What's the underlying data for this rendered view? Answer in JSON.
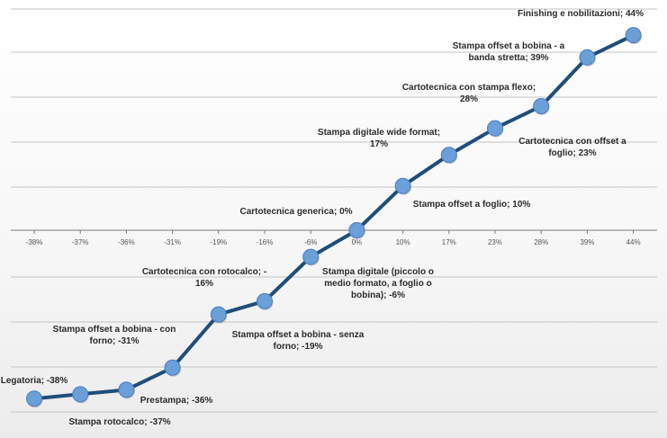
{
  "chart_data": {
    "type": "line",
    "title": "",
    "xlabel": "",
    "ylabel": "",
    "grid": true,
    "legend": "none",
    "line_color": "#1f4e79",
    "marker_color": "#6a9fd8",
    "grid_color": "#c4c4c4",
    "axis_color": "#7a7a7a",
    "points": [
      {
        "name": "Legatoria",
        "value": -38,
        "tick": "-38%",
        "label_lines": [
          "Legatoria; -38%"
        ]
      },
      {
        "name": "Stampa rotocalco",
        "value": -37,
        "tick": "-37%",
        "label_lines": [
          "Stampa rotocalco; -37%"
        ]
      },
      {
        "name": "Prestampa",
        "value": -36,
        "tick": "-36%",
        "label_lines": [
          "Prestampa; -36%"
        ]
      },
      {
        "name": "Stampa offset a bobina - con forno",
        "value": -31,
        "tick": "-31%",
        "label_lines": [
          "Stampa offset a bobina - con",
          "forno; -31%"
        ]
      },
      {
        "name": "Stampa offset a bobina - senza forno",
        "value": -19,
        "tick": "-19%",
        "label_lines": [
          "Stampa offset a bobina - senza",
          "forno; -19%"
        ]
      },
      {
        "name": "Cartotecnica con rotocalco",
        "value": -16,
        "tick": "-16%",
        "label_lines": [
          "Cartotecnica con rotocalco; -",
          "16%"
        ]
      },
      {
        "name": "Stampa digitale (piccolo o medio formato, a foglio o bobina)",
        "value": -6,
        "tick": "-6%",
        "label_lines": [
          "Stampa digitale (piccolo o",
          "medio formato, a foglio o",
          "bobina); -6%"
        ]
      },
      {
        "name": "Cartotecnica generica",
        "value": 0,
        "tick": "0%",
        "label_lines": [
          "Cartotecnica generica; 0%"
        ]
      },
      {
        "name": "Stampa offset a foglio",
        "value": 10,
        "tick": "10%",
        "label_lines": [
          "Stampa offset a foglio; 10%"
        ]
      },
      {
        "name": "Stampa digitale wide format",
        "value": 17,
        "tick": "17%",
        "label_lines": [
          "Stampa digitale wide format;",
          "17%"
        ]
      },
      {
        "name": "Cartotecnica con offset a foglio",
        "value": 23,
        "tick": "23%",
        "label_lines": [
          "Cartotecnica con offset a",
          "foglio; 23%"
        ]
      },
      {
        "name": "Cartotecnica con stampa flexo",
        "value": 28,
        "tick": "28%",
        "label_lines": [
          "Cartotecnica con stampa flexo;",
          "28%"
        ]
      },
      {
        "name": "Stampa offset a bobina - a banda stretta",
        "value": 39,
        "tick": "39%",
        "label_lines": [
          "Stampa offset a bobina - a",
          "banda stretta; 39%"
        ]
      },
      {
        "name": "Finishing e nobilitazioni",
        "value": 44,
        "tick": "44%",
        "label_lines": [
          "Finishing e nobilitazioni; 44%"
        ]
      }
    ]
  }
}
